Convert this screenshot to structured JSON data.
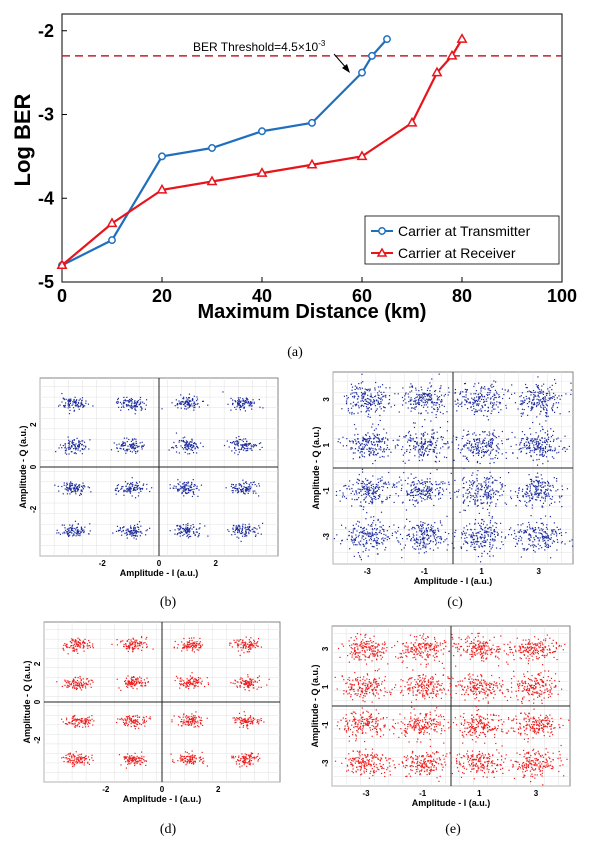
{
  "chart_data": [
    {
      "type": "line",
      "panel_label": "(a)",
      "xlabel": "Maximum Distance (km)",
      "ylabel": "Log BER",
      "xlim": [
        0,
        100
      ],
      "ylim": [
        -5,
        -1.8
      ],
      "xticks": [
        "0",
        "20",
        "40",
        "60",
        "80",
        "100"
      ],
      "yticks": [
        "-2",
        "-3",
        "-4",
        "-5"
      ],
      "grid": false,
      "legend_position": "bottom-right",
      "threshold": {
        "label_main": "BER Threshold=4.5×10",
        "label_exp": "-3",
        "y": -2.3,
        "color": "#c0202a"
      },
      "series": [
        {
          "name": "Carrier at Transmitter",
          "color": "#1f6fbf",
          "marker": "circle",
          "x": [
            0,
            10,
            20,
            30,
            40,
            50,
            60,
            62,
            65
          ],
          "y": [
            -4.8,
            -4.5,
            -3.5,
            -3.4,
            -3.2,
            -3.1,
            -2.5,
            -2.3,
            -2.1
          ]
        },
        {
          "name": "Carrier at Receiver",
          "color": "#e8141c",
          "marker": "triangle",
          "x": [
            0,
            10,
            20,
            30,
            40,
            50,
            60,
            70,
            75,
            78,
            80
          ],
          "y": [
            -4.8,
            -4.3,
            -3.9,
            -3.8,
            -3.7,
            -3.6,
            -3.5,
            -3.1,
            -2.5,
            -2.3,
            -2.1
          ]
        }
      ]
    },
    {
      "type": "scatter",
      "panel_label": "(b)",
      "xlabel": "Amplitude - I (a.u.)",
      "ylabel": "Amplitude - Q (a.u.)",
      "color": "#1c2b9c",
      "xticks": [
        "-2",
        "0",
        "2"
      ],
      "yticks": [
        "2",
        "0",
        "-2"
      ],
      "constellation_levels": [
        -3,
        -1,
        1,
        3
      ],
      "spread": 0.16
    },
    {
      "type": "scatter",
      "panel_label": "(c)",
      "xlabel": "Amplitude - I (a.u.)",
      "ylabel": "Amplitude - Q (a.u.)",
      "color": "#1c2b9c",
      "xticks": [
        "-3",
        "-1",
        "1",
        "3"
      ],
      "yticks": [
        "3",
        "1",
        "-1",
        "-3"
      ],
      "constellation_levels": [
        -3,
        -1,
        1,
        3
      ],
      "spread": 0.34
    },
    {
      "type": "scatter",
      "panel_label": "(d)",
      "xlabel": "Amplitude - I (a.u.)",
      "ylabel": "Amplitude - Q (a.u.)",
      "color": "#ee1c1c",
      "xticks": [
        "-2",
        "0",
        "2"
      ],
      "yticks": [
        "2",
        "0",
        "-2"
      ],
      "constellation_levels": [
        -3,
        -1,
        1,
        3
      ],
      "spread": 0.16
    },
    {
      "type": "scatter",
      "panel_label": "(e)",
      "xlabel": "Amplitude - I (a.u.)",
      "ylabel": "Amplitude - Q (a.u.)",
      "color": "#ee1c1c",
      "xticks": [
        "-3",
        "-1",
        "1",
        "3"
      ],
      "yticks": [
        "3",
        "1",
        "-1",
        "-3"
      ],
      "constellation_levels": [
        -3,
        -1,
        1,
        3
      ],
      "spread": 0.34
    }
  ]
}
